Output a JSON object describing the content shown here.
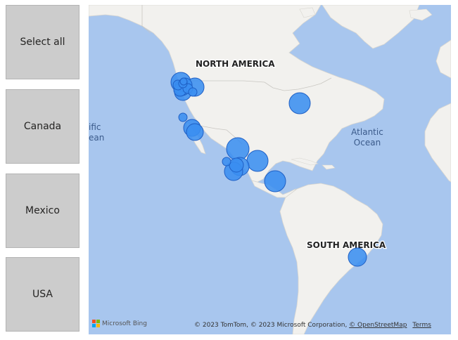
{
  "slicer": {
    "options": [
      "Select all",
      "Canada",
      "Mexico",
      "USA"
    ]
  },
  "map": {
    "labels": {
      "north_america": "NORTH AMERICA",
      "south_america": "SOUTH AMERICA",
      "atlantic_1": "Atlantic",
      "atlantic_2": "Ocean",
      "pacific_1": "ific",
      "pacific_2": "ean"
    },
    "bubble_color": "#3a8ef0",
    "bubble_stroke": "#1f5fc4",
    "land_color": "#f2f1ee",
    "water_color": "#a8c6ee",
    "attribution": {
      "text": "© 2023 TomTom, © 2023 Microsoft Corporation, ",
      "link": "© OpenStreetMap",
      "terms": "Terms"
    },
    "provider": "Microsoft Bing"
  }
}
